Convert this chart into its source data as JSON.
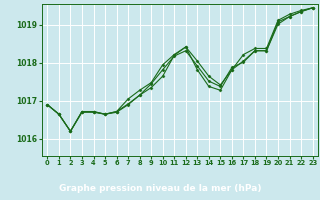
{
  "xlabel": "Graphe pression niveau de la mer (hPa)",
  "ylim": [
    1015.55,
    1019.55
  ],
  "xlim": [
    -0.5,
    23.5
  ],
  "yticks": [
    1016,
    1017,
    1018,
    1019
  ],
  "xticks": [
    0,
    1,
    2,
    3,
    4,
    5,
    6,
    7,
    8,
    9,
    10,
    11,
    12,
    13,
    14,
    15,
    16,
    17,
    18,
    19,
    20,
    21,
    22,
    23
  ],
  "bg_color": "#cce8ed",
  "grid_color": "#ffffff",
  "line_color": "#1a6b1a",
  "xlabel_bg": "#2d6b2d",
  "xlabel_fg": "#ffffff",
  "series": [
    [
      1016.9,
      1016.65,
      1016.2,
      1016.7,
      1016.7,
      1016.65,
      1016.7,
      1016.9,
      1017.15,
      1017.35,
      1017.65,
      1018.2,
      1018.42,
      1018.05,
      1017.65,
      1017.42,
      1017.82,
      1018.05,
      1018.32,
      1018.32,
      1019.02,
      1019.22,
      1019.35,
      1019.45
    ],
    [
      1016.9,
      1016.65,
      1016.2,
      1016.72,
      1016.72,
      1016.65,
      1016.72,
      1017.05,
      1017.28,
      1017.48,
      1017.95,
      1018.22,
      1018.42,
      1017.82,
      1017.38,
      1017.28,
      1017.82,
      1018.22,
      1018.38,
      1018.38,
      1019.12,
      1019.28,
      1019.38,
      1019.45
    ],
    [
      1016.9,
      1016.65,
      1016.2,
      1016.72,
      1016.72,
      1016.65,
      1016.72,
      1016.92,
      1017.15,
      1017.45,
      1017.82,
      1018.18,
      1018.32,
      1017.92,
      1017.52,
      1017.38,
      1017.88,
      1018.02,
      1018.32,
      1018.32,
      1019.08,
      1019.22,
      1019.35,
      1019.45
    ]
  ]
}
